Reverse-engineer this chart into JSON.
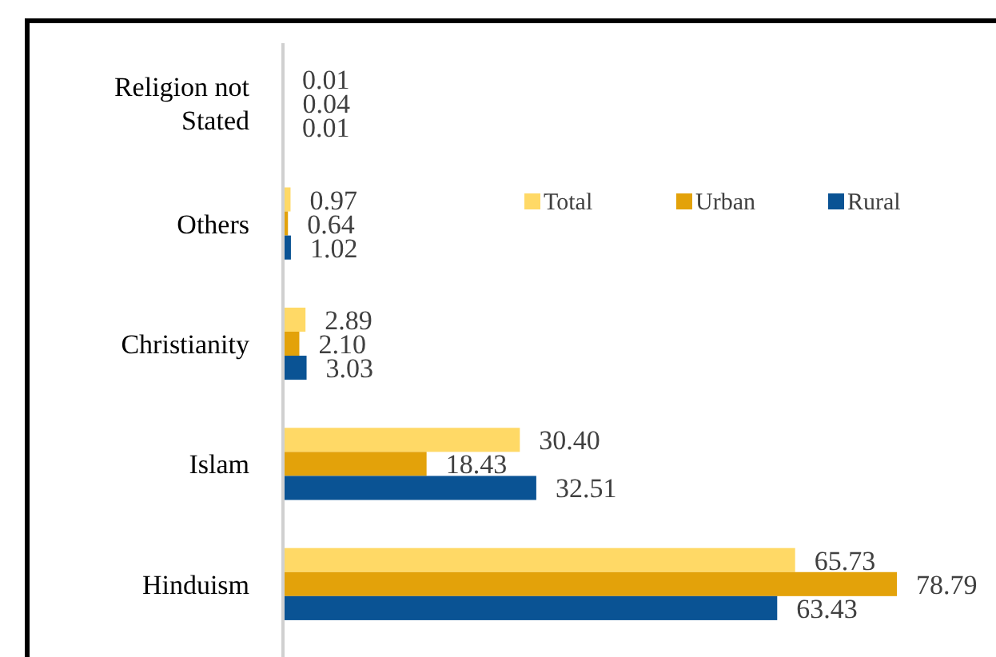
{
  "chart_data": {
    "type": "bar",
    "orientation": "horizontal",
    "categories": [
      "Religion not\nStated",
      "Others",
      "Christianity",
      "Islam",
      "Hinduism"
    ],
    "series": [
      {
        "name": "Total",
        "color": "#ffd966",
        "values": [
          0.01,
          0.97,
          2.89,
          30.4,
          65.73
        ],
        "value_labels": [
          "0.01",
          "0.97",
          "2.89",
          "30.40",
          "65.73"
        ]
      },
      {
        "name": "Urban",
        "color": "#e3a20a",
        "values": [
          0.04,
          0.64,
          2.1,
          18.43,
          78.79
        ],
        "value_labels": [
          "0.04",
          "0.64",
          "2.10",
          "18.43",
          "78.79"
        ]
      },
      {
        "name": "Rural",
        "color": "#0a5394",
        "values": [
          0.01,
          1.02,
          3.03,
          32.51,
          63.43
        ],
        "value_labels": [
          "0.01",
          "1.02",
          "3.03",
          "32.51",
          "63.43"
        ]
      }
    ],
    "legend": "top right",
    "grid": false
  }
}
